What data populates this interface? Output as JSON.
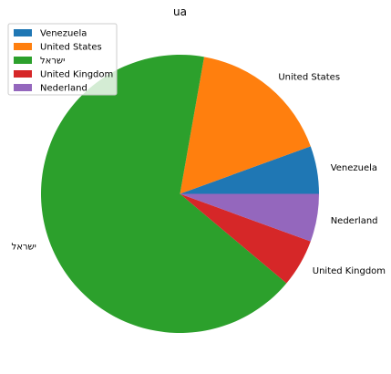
{
  "chart_data": {
    "type": "pie",
    "title": "ua",
    "labels": [
      "Venezuela",
      "United States",
      "ישראל",
      "United Kingdom",
      "Nederland"
    ],
    "values": [
      1,
      3,
      12,
      1,
      1
    ],
    "colors": [
      "#1f77b4",
      "#ff7f0e",
      "#2ca02c",
      "#d62728",
      "#9467bd"
    ],
    "start_angle_deg": 0,
    "direction": "counterclockwise",
    "legend": {
      "placement": "upper-left",
      "entries": [
        "Venezuela",
        "United States",
        "ישראל",
        "United Kingdom",
        "Nederland"
      ]
    }
  }
}
